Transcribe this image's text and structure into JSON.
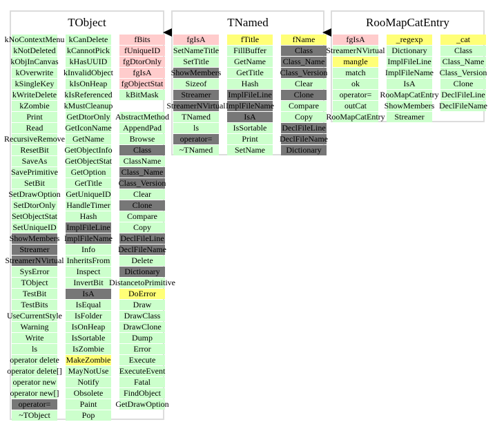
{
  "colors": {
    "public": "#ccffcc",
    "hidden": "#777777",
    "data_member": "#ffcccc",
    "protected": "#ffff77",
    "border": "#dcdcdc"
  },
  "classes": [
    {
      "title": "TObject",
      "columns": [
        [
          [
            "kNoContextMenu",
            "g"
          ],
          [
            "kNotDeleted",
            "g"
          ],
          [
            "kObjInCanvas",
            "g"
          ],
          [
            "kOverwrite",
            "g"
          ],
          [
            "kSingleKey",
            "g"
          ],
          [
            "kWriteDelete",
            "g"
          ],
          [
            "kZombie",
            "g"
          ],
          [
            "Print",
            "g"
          ],
          [
            "Read",
            "g"
          ],
          [
            "RecursiveRemove",
            "g"
          ],
          [
            "ResetBit",
            "g"
          ],
          [
            "SaveAs",
            "g"
          ],
          [
            "SavePrimitive",
            "g"
          ],
          [
            "SetBit",
            "g"
          ],
          [
            "SetDrawOption",
            "g"
          ],
          [
            "SetDtorOnly",
            "g"
          ],
          [
            "SetObjectStat",
            "g"
          ],
          [
            "SetUniqueID",
            "g"
          ],
          [
            "ShowMembers",
            "d"
          ],
          [
            "Streamer",
            "d"
          ],
          [
            "StreamerNVirtual",
            "d"
          ],
          [
            "SysError",
            "g"
          ],
          [
            "TObject",
            "g"
          ],
          [
            "TestBit",
            "g"
          ],
          [
            "TestBits",
            "g"
          ],
          [
            "UseCurrentStyle",
            "g"
          ],
          [
            "Warning",
            "g"
          ],
          [
            "Write",
            "g"
          ],
          [
            "ls",
            "g"
          ],
          [
            "operator delete",
            "g"
          ],
          [
            "operator delete[]",
            "g"
          ],
          [
            "operator new",
            "g"
          ],
          [
            "operator new[]",
            "g"
          ],
          [
            "operator=",
            "d"
          ],
          [
            "~TObject",
            "g"
          ]
        ],
        [
          [
            "kCanDelete",
            "g"
          ],
          [
            "kCannotPick",
            "g"
          ],
          [
            "kHasUUID",
            "g"
          ],
          [
            "kInvalidObject",
            "g"
          ],
          [
            "kIsOnHeap",
            "g"
          ],
          [
            "kIsReferenced",
            "g"
          ],
          [
            "kMustCleanup",
            "g"
          ],
          [
            "GetDtorOnly",
            "g"
          ],
          [
            "GetIconName",
            "g"
          ],
          [
            "GetName",
            "g"
          ],
          [
            "GetObjectInfo",
            "g"
          ],
          [
            "GetObjectStat",
            "g"
          ],
          [
            "GetOption",
            "g"
          ],
          [
            "GetTitle",
            "g"
          ],
          [
            "GetUniqueID",
            "g"
          ],
          [
            "HandleTimer",
            "g"
          ],
          [
            "Hash",
            "g"
          ],
          [
            "ImplFileLine",
            "d"
          ],
          [
            "ImplFileName",
            "d"
          ],
          [
            "Info",
            "g"
          ],
          [
            "InheritsFrom",
            "g"
          ],
          [
            "Inspect",
            "g"
          ],
          [
            "InvertBit",
            "g"
          ],
          [
            "IsA",
            "d"
          ],
          [
            "IsEqual",
            "g"
          ],
          [
            "IsFolder",
            "g"
          ],
          [
            "IsOnHeap",
            "g"
          ],
          [
            "IsSortable",
            "g"
          ],
          [
            "IsZombie",
            "g"
          ],
          [
            "MakeZombie",
            "y"
          ],
          [
            "MayNotUse",
            "g"
          ],
          [
            "Notify",
            "g"
          ],
          [
            "Obsolete",
            "g"
          ],
          [
            "Paint",
            "g"
          ],
          [
            "Pop",
            "g"
          ]
        ],
        [
          [
            "fBits",
            "p"
          ],
          [
            "fUniqueID",
            "p"
          ],
          [
            "fgDtorOnly",
            "p"
          ],
          [
            "fgIsA",
            "p"
          ],
          [
            "fgObjectStat",
            "p"
          ],
          [
            "kBitMask",
            "g"
          ],
          [
            "",
            "b"
          ],
          [
            "AbstractMethod",
            "g"
          ],
          [
            "AppendPad",
            "g"
          ],
          [
            "Browse",
            "g"
          ],
          [
            "Class",
            "d"
          ],
          [
            "ClassName",
            "g"
          ],
          [
            "Class_Name",
            "d"
          ],
          [
            "Class_Version",
            "d"
          ],
          [
            "Clear",
            "g"
          ],
          [
            "Clone",
            "d"
          ],
          [
            "Compare",
            "g"
          ],
          [
            "Copy",
            "g"
          ],
          [
            "DeclFileLine",
            "d"
          ],
          [
            "DeclFileName",
            "d"
          ],
          [
            "Delete",
            "g"
          ],
          [
            "Dictionary",
            "d"
          ],
          [
            "DistancetoPrimitive",
            "g"
          ],
          [
            "DoError",
            "y"
          ],
          [
            "Draw",
            "g"
          ],
          [
            "DrawClass",
            "g"
          ],
          [
            "DrawClone",
            "g"
          ],
          [
            "Dump",
            "g"
          ],
          [
            "Error",
            "g"
          ],
          [
            "Execute",
            "g"
          ],
          [
            "ExecuteEvent",
            "g"
          ],
          [
            "Fatal",
            "g"
          ],
          [
            "FindObject",
            "g"
          ],
          [
            "GetDrawOption",
            "g"
          ]
        ]
      ]
    },
    {
      "title": "TNamed",
      "columns": [
        [
          [
            "fgIsA",
            "p"
          ],
          [
            "SetNameTitle",
            "g"
          ],
          [
            "SetTitle",
            "g"
          ],
          [
            "ShowMembers",
            "d"
          ],
          [
            "Sizeof",
            "g"
          ],
          [
            "Streamer",
            "d"
          ],
          [
            "StreamerNVirtual",
            "d"
          ],
          [
            "TNamed",
            "g"
          ],
          [
            "ls",
            "g"
          ],
          [
            "operator=",
            "d"
          ],
          [
            "~TNamed",
            "g"
          ]
        ],
        [
          [
            "fTitle",
            "y"
          ],
          [
            "FillBuffer",
            "g"
          ],
          [
            "GetName",
            "g"
          ],
          [
            "GetTitle",
            "g"
          ],
          [
            "Hash",
            "g"
          ],
          [
            "ImplFileLine",
            "d"
          ],
          [
            "ImplFileName",
            "d"
          ],
          [
            "IsA",
            "d"
          ],
          [
            "IsSortable",
            "g"
          ],
          [
            "Print",
            "g"
          ],
          [
            "SetName",
            "g"
          ]
        ],
        [
          [
            "fName",
            "y"
          ],
          [
            "Class",
            "d"
          ],
          [
            "Class_Name",
            "d"
          ],
          [
            "Class_Version",
            "d"
          ],
          [
            "Clear",
            "g"
          ],
          [
            "Clone",
            "d"
          ],
          [
            "Compare",
            "g"
          ],
          [
            "Copy",
            "g"
          ],
          [
            "DeclFileLine",
            "d"
          ],
          [
            "DeclFileName",
            "d"
          ],
          [
            "Dictionary",
            "d"
          ]
        ]
      ]
    },
    {
      "title": "RooMapCatEntry",
      "columns": [
        [
          [
            "fgIsA",
            "p"
          ],
          [
            "StreamerNVirtual",
            "g"
          ],
          [
            "mangle",
            "y"
          ],
          [
            "match",
            "g"
          ],
          [
            "ok",
            "g"
          ],
          [
            "operator=",
            "g"
          ],
          [
            "outCat",
            "g"
          ],
          [
            "RooMapCatEntry",
            "g"
          ]
        ],
        [
          [
            "_regexp",
            "y"
          ],
          [
            "Dictionary",
            "g"
          ],
          [
            "ImplFileLine",
            "g"
          ],
          [
            "ImplFileName",
            "g"
          ],
          [
            "IsA",
            "g"
          ],
          [
            "RooMapCatEntry",
            "g"
          ],
          [
            "ShowMembers",
            "g"
          ],
          [
            "Streamer",
            "g"
          ]
        ],
        [
          [
            "_cat",
            "y"
          ],
          [
            "Class",
            "g"
          ],
          [
            "Class_Name",
            "g"
          ],
          [
            "Class_Version",
            "g"
          ],
          [
            "Clone",
            "g"
          ],
          [
            "DeclFileLine",
            "g"
          ],
          [
            "DeclFileName",
            "g"
          ]
        ]
      ]
    }
  ]
}
